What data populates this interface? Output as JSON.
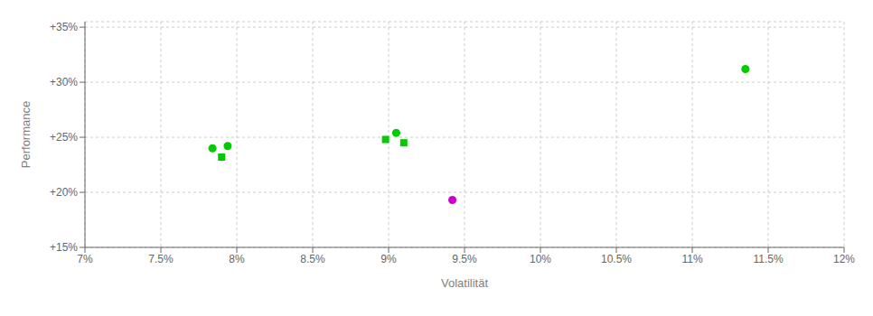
{
  "chart_data": {
    "type": "scatter",
    "xlabel": "Volatilität",
    "ylabel": "Performance",
    "xlim": [
      0.07,
      0.12
    ],
    "ylim": [
      0.15,
      0.355
    ],
    "xticks": [
      {
        "value": 0.07,
        "label": "7%"
      },
      {
        "value": 0.075,
        "label": "7.5%"
      },
      {
        "value": 0.08,
        "label": "8%"
      },
      {
        "value": 0.085,
        "label": "8.5%"
      },
      {
        "value": 0.09,
        "label": "9%"
      },
      {
        "value": 0.095,
        "label": "9.5%"
      },
      {
        "value": 0.1,
        "label": "10%"
      },
      {
        "value": 0.105,
        "label": "10.5%"
      },
      {
        "value": 0.11,
        "label": "11%"
      },
      {
        "value": 0.115,
        "label": "11.5%"
      },
      {
        "value": 0.12,
        "label": "12%"
      }
    ],
    "yticks": [
      {
        "value": 0.15,
        "label": "+15%"
      },
      {
        "value": 0.2,
        "label": "+20%"
      },
      {
        "value": 0.25,
        "label": "+25%"
      },
      {
        "value": 0.3,
        "label": "+30%"
      },
      {
        "value": 0.35,
        "label": "+35%"
      }
    ],
    "grid": true,
    "series": [
      {
        "color": "#00cc00",
        "marker": "circle",
        "x": [
          0.0784,
          0.0794,
          0.0905,
          0.1135
        ],
        "y": [
          0.24,
          0.242,
          0.254,
          0.312
        ]
      },
      {
        "color": "#00cc00",
        "marker": "square",
        "x": [
          0.079,
          0.0898,
          0.091
        ],
        "y": [
          0.232,
          0.248,
          0.245
        ]
      },
      {
        "color": "#cc00cc",
        "marker": "circle",
        "x": [
          0.0942
        ],
        "y": [
          0.193
        ]
      }
    ]
  }
}
